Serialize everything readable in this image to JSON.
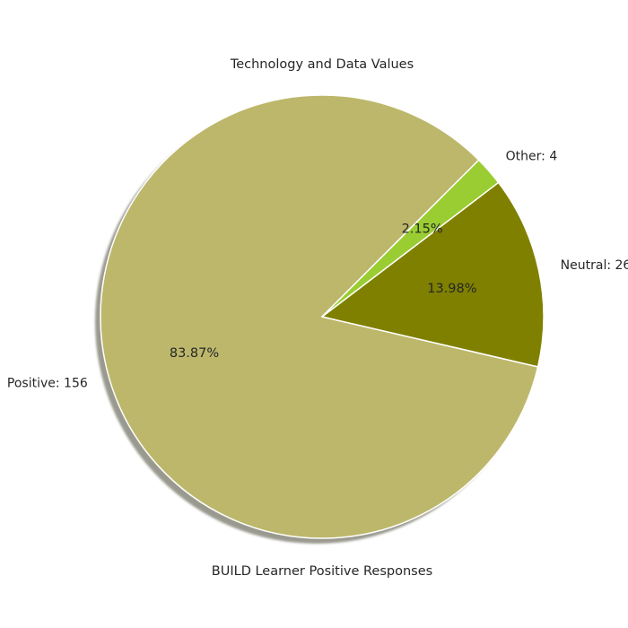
{
  "chart_data": {
    "type": "pie",
    "title": "Technology and Data Values",
    "xlabel": "BUILD Learner Positive Responses",
    "slices": [
      {
        "label": "Positive: 156",
        "category": "Positive",
        "value": 156,
        "percent_label": "83.87%",
        "color": "#bdb76b"
      },
      {
        "label": "Neutral: 26",
        "category": "Neutral",
        "value": 26,
        "percent_label": "13.98%",
        "color": "#808000"
      },
      {
        "label": "Other: 4",
        "category": "Other",
        "value": 4,
        "percent_label": "2.15%",
        "color": "#9acd32"
      }
    ],
    "start_angle_deg": 45,
    "direction": "counterclockwise",
    "shadow": true,
    "edge_color": "#ffffff"
  }
}
